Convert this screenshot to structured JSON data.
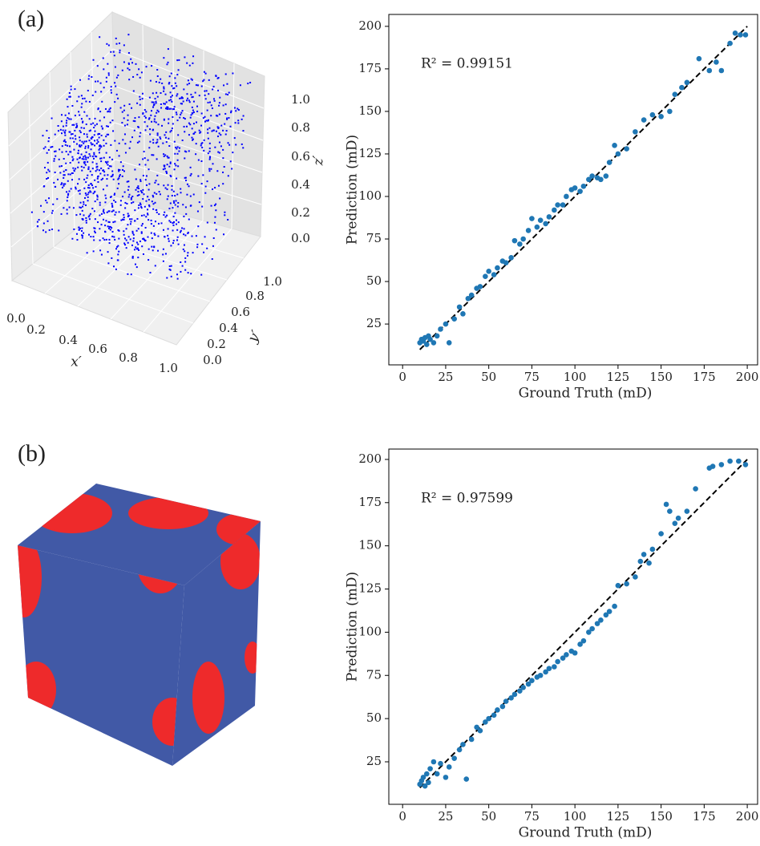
{
  "chart_data": [
    {
      "type": "scatter3d",
      "panel": "(a)",
      "xlabel": "x′",
      "ylabel": "y′",
      "zlabel": "z′",
      "color": "#0000ff",
      "xticks": [
        {
          "value": 0,
          "label": "0.0"
        },
        {
          "value": 0.2,
          "label": "0.2"
        },
        {
          "value": 0.4,
          "label": "0.4"
        },
        {
          "value": 0.6,
          "label": "0.6"
        },
        {
          "value": 0.8,
          "label": "0.8"
        },
        {
          "value": 1,
          "label": "1.0"
        }
      ],
      "yticks": [
        {
          "value": 0,
          "label": "0.0"
        },
        {
          "value": 0.2,
          "label": "0.2"
        },
        {
          "value": 0.4,
          "label": "0.4"
        },
        {
          "value": 0.6,
          "label": "0.6"
        },
        {
          "value": 0.8,
          "label": "0.8"
        },
        {
          "value": 1,
          "label": "1.0"
        }
      ],
      "zticks": [
        {
          "value": 0,
          "label": "0.0"
        },
        {
          "value": 0.2,
          "label": "0.2"
        },
        {
          "value": 0.4,
          "label": "0.4"
        },
        {
          "value": 0.6,
          "label": "0.6"
        },
        {
          "value": 0.8,
          "label": "0.8"
        },
        {
          "value": 1,
          "label": "1.0"
        }
      ]
    },
    {
      "type": "scatter",
      "annotation": "R² = 0.99151",
      "xlabel": "Ground Truth (mD)",
      "ylabel": "Prediction (mD)",
      "color": "#1f77b4",
      "x": [
        10,
        11,
        12,
        13,
        14,
        15,
        16,
        18,
        20,
        22,
        25,
        27,
        30,
        33,
        35,
        38,
        40,
        43,
        45,
        48,
        50,
        53,
        55,
        58,
        60,
        63,
        65,
        68,
        70,
        73,
        75,
        78,
        80,
        83,
        85,
        88,
        90,
        93,
        95,
        98,
        100,
        103,
        105,
        108,
        110,
        113,
        115,
        118,
        120,
        123,
        125,
        130,
        135,
        140,
        145,
        150,
        155,
        158,
        162,
        165,
        172,
        178,
        182,
        185,
        190,
        193,
        196,
        199
      ],
      "values": [
        14,
        16,
        15,
        17,
        13,
        18,
        16,
        14,
        18,
        22,
        25,
        14,
        28,
        35,
        31,
        40,
        42,
        46,
        47,
        53,
        56,
        54,
        58,
        62,
        61,
        64,
        74,
        72,
        75,
        80,
        87,
        82,
        86,
        84,
        88,
        92,
        95,
        95,
        100,
        104,
        105,
        103,
        106,
        110,
        112,
        111,
        110,
        112,
        120,
        130,
        125,
        128,
        138,
        145,
        148,
        147,
        150,
        160,
        164,
        167,
        181,
        174,
        179,
        174,
        190,
        196,
        195,
        195
      ],
      "reference_line": [
        10,
        200
      ],
      "xlim": [
        -8,
        206
      ],
      "ylim": [
        1,
        207
      ],
      "xticks": [
        0,
        25,
        50,
        75,
        100,
        125,
        150,
        175,
        200
      ],
      "yticks": [
        25,
        50,
        75,
        100,
        125,
        150,
        175,
        200
      ]
    },
    {
      "type": "voxel",
      "panel": "(b)"
    },
    {
      "type": "scatter",
      "annotation": "R² = 0.97599",
      "xlabel": "Ground Truth (mD)",
      "ylabel": "Prediction (mD)",
      "color": "#1f77b4",
      "x": [
        10,
        11,
        12,
        13,
        14,
        15,
        16,
        18,
        20,
        22,
        25,
        27,
        30,
        33,
        35,
        37,
        40,
        43,
        45,
        48,
        50,
        53,
        55,
        58,
        60,
        63,
        65,
        68,
        70,
        73,
        75,
        78,
        80,
        83,
        85,
        88,
        90,
        93,
        95,
        98,
        100,
        103,
        105,
        108,
        110,
        113,
        115,
        118,
        120,
        123,
        125,
        130,
        135,
        138,
        140,
        143,
        145,
        150,
        153,
        155,
        158,
        160,
        165,
        170,
        178,
        180,
        185,
        190,
        195,
        199
      ],
      "values": [
        12,
        14,
        16,
        11,
        18,
        13,
        21,
        25,
        18,
        24,
        16,
        22,
        27,
        32,
        35,
        15,
        38,
        45,
        43,
        48,
        50,
        52,
        55,
        57,
        60,
        62,
        64,
        66,
        68,
        70,
        72,
        74,
        75,
        77,
        79,
        80,
        83,
        85,
        87,
        89,
        88,
        93,
        95,
        100,
        102,
        105,
        107,
        110,
        112,
        115,
        127,
        128,
        132,
        141,
        145,
        140,
        148,
        157,
        174,
        170,
        163,
        166,
        170,
        183,
        195,
        196,
        197,
        199,
        199,
        197
      ],
      "reference_line": [
        10,
        200
      ],
      "xlim": [
        -8,
        206
      ],
      "ylim": [
        0.4,
        206
      ],
      "xticks": [
        0,
        25,
        50,
        75,
        100,
        125,
        150,
        175,
        200
      ],
      "yticks": [
        25,
        50,
        75,
        100,
        125,
        150,
        175,
        200
      ]
    }
  ]
}
